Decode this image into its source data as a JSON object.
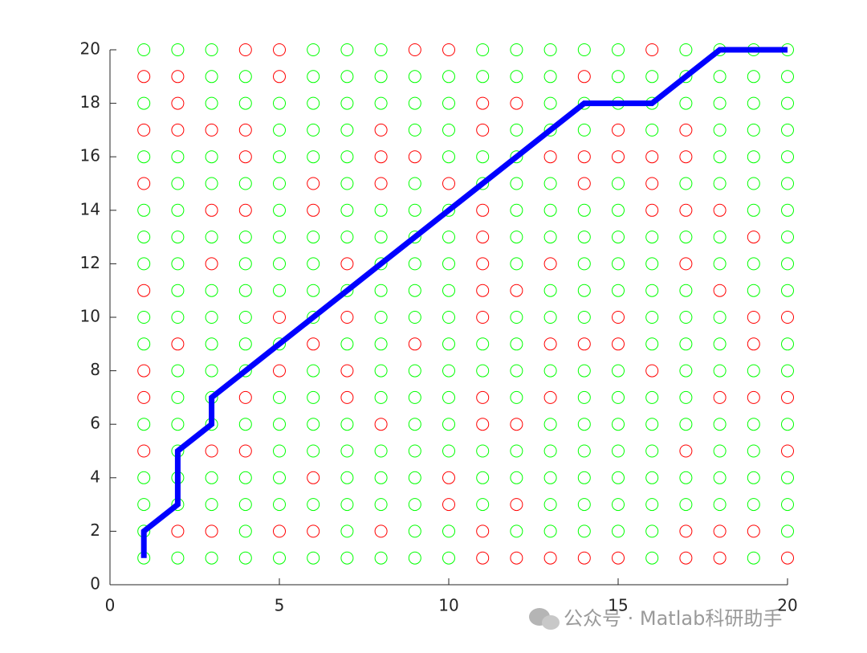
{
  "chart_data": {
    "type": "scatter",
    "xlim": [
      0,
      20
    ],
    "xticks": [
      0,
      5,
      10,
      15,
      20
    ],
    "ylim": [
      0,
      20
    ],
    "yticks": [
      0,
      2,
      4,
      6,
      8,
      10,
      12,
      14,
      16,
      18,
      20
    ],
    "series": [
      {
        "color": "#00ff00",
        "rows": [
          {
            "y": 20,
            "x": [
              1,
              2,
              3,
              6,
              7,
              8,
              11,
              12,
              13,
              14,
              15,
              17,
              18,
              19,
              20
            ]
          },
          {
            "y": 19,
            "x": [
              3,
              4,
              6,
              7,
              8,
              9,
              10,
              11,
              12,
              13,
              15,
              16,
              17,
              18,
              19,
              20
            ]
          },
          {
            "y": 18,
            "x": [
              1,
              3,
              4,
              5,
              6,
              7,
              8,
              9,
              10,
              13,
              14,
              15,
              16,
              17,
              18,
              19,
              20
            ]
          },
          {
            "y": 17,
            "x": [
              5,
              6,
              7,
              9,
              10,
              12,
              13,
              14,
              16,
              18,
              19,
              20
            ]
          },
          {
            "y": 16,
            "x": [
              1,
              2,
              3,
              5,
              6,
              7,
              10,
              11,
              12,
              18,
              19,
              20
            ]
          },
          {
            "y": 15,
            "x": [
              2,
              3,
              4,
              5,
              7,
              9,
              11,
              12,
              13,
              15,
              17,
              18,
              19,
              20
            ]
          },
          {
            "y": 14,
            "x": [
              1,
              2,
              5,
              7,
              8,
              9,
              10,
              12,
              13,
              14,
              15,
              19,
              20
            ]
          },
          {
            "y": 13,
            "x": [
              1,
              2,
              3,
              4,
              5,
              6,
              7,
              8,
              9,
              10,
              12,
              13,
              14,
              15,
              16,
              17,
              18,
              20
            ]
          },
          {
            "y": 12,
            "x": [
              1,
              2,
              4,
              5,
              6,
              8,
              9,
              10,
              12,
              14,
              15,
              16,
              18,
              19,
              20
            ]
          },
          {
            "y": 11,
            "x": [
              2,
              3,
              4,
              5,
              6,
              7,
              8,
              9,
              10,
              13,
              14,
              15,
              16,
              17,
              19,
              20
            ]
          },
          {
            "y": 10,
            "x": [
              1,
              2,
              3,
              4,
              6,
              8,
              9,
              10,
              12,
              13,
              14,
              16,
              17,
              18
            ]
          },
          {
            "y": 9,
            "x": [
              1,
              3,
              4,
              5,
              7,
              8,
              10,
              11,
              12,
              16,
              17,
              18,
              20
            ]
          },
          {
            "y": 8,
            "x": [
              2,
              3,
              4,
              6,
              8,
              9,
              10,
              11,
              12,
              13,
              14,
              15,
              17,
              18,
              19,
              20
            ]
          },
          {
            "y": 7,
            "x": [
              2,
              3,
              5,
              6,
              8,
              9,
              10,
              12,
              14,
              15,
              16,
              17
            ]
          },
          {
            "y": 6,
            "x": [
              1,
              2,
              3,
              4,
              5,
              6,
              7,
              9,
              10,
              13,
              14,
              15,
              16,
              17,
              18,
              19,
              20
            ]
          },
          {
            "y": 5,
            "x": [
              2,
              5,
              6,
              7,
              8,
              9,
              10,
              11,
              12,
              13,
              14,
              15,
              16,
              18,
              19
            ]
          },
          {
            "y": 4,
            "x": [
              1,
              2,
              3,
              4,
              5,
              7,
              8,
              9,
              11,
              12,
              13,
              14,
              15,
              16,
              17,
              18,
              19,
              20
            ]
          },
          {
            "y": 3,
            "x": [
              1,
              2,
              3,
              4,
              5,
              6,
              7,
              8,
              9,
              11,
              13,
              14,
              15,
              16,
              17,
              18,
              19,
              20
            ]
          },
          {
            "y": 2,
            "x": [
              1,
              4,
              7,
              9,
              10,
              12,
              13,
              14,
              15,
              16,
              20
            ]
          },
          {
            "y": 1,
            "x": [
              1,
              2,
              3,
              4,
              5,
              6,
              7,
              8,
              9,
              10,
              16,
              19
            ]
          }
        ]
      },
      {
        "color": "#ff0000",
        "rows": [
          {
            "y": 20,
            "x": [
              4,
              5,
              9,
              10,
              16
            ]
          },
          {
            "y": 19,
            "x": [
              1,
              2,
              5,
              14
            ]
          },
          {
            "y": 18,
            "x": [
              2,
              11,
              12
            ]
          },
          {
            "y": 17,
            "x": [
              1,
              2,
              3,
              4,
              8,
              11,
              15,
              17
            ]
          },
          {
            "y": 16,
            "x": [
              4,
              8,
              9,
              13,
              14,
              15,
              16,
              17
            ]
          },
          {
            "y": 15,
            "x": [
              1,
              6,
              8,
              10,
              14,
              16
            ]
          },
          {
            "y": 14,
            "x": [
              3,
              4,
              6,
              11,
              16,
              17,
              18
            ]
          },
          {
            "y": 13,
            "x": [
              11,
              19
            ]
          },
          {
            "y": 12,
            "x": [
              3,
              7,
              11,
              13,
              17
            ]
          },
          {
            "y": 11,
            "x": [
              1,
              11,
              12,
              18
            ]
          },
          {
            "y": 10,
            "x": [
              5,
              7,
              11,
              15,
              19,
              20
            ]
          },
          {
            "y": 9,
            "x": [
              2,
              6,
              9,
              13,
              14,
              15,
              19
            ]
          },
          {
            "y": 8,
            "x": [
              1,
              5,
              7,
              16
            ]
          },
          {
            "y": 7,
            "x": [
              1,
              4,
              7,
              11,
              13,
              18,
              19,
              20
            ]
          },
          {
            "y": 6,
            "x": [
              8,
              11,
              12
            ]
          },
          {
            "y": 5,
            "x": [
              1,
              3,
              4,
              17,
              20
            ]
          },
          {
            "y": 4,
            "x": [
              6,
              10
            ]
          },
          {
            "y": 3,
            "x": [
              10,
              12
            ]
          },
          {
            "y": 2,
            "x": [
              2,
              3,
              5,
              6,
              8,
              11,
              17,
              18,
              19
            ]
          },
          {
            "y": 1,
            "x": [
              11,
              12,
              13,
              14,
              15,
              17,
              18,
              20
            ]
          }
        ]
      },
      {
        "type": "line",
        "color": "#0000ff",
        "x": [
          1,
          1,
          2,
          2,
          3,
          3,
          4,
          5,
          6,
          7,
          8,
          9,
          10,
          11,
          12,
          13,
          14,
          15,
          16,
          17,
          18,
          19,
          20
        ],
        "y": [
          1,
          2,
          3,
          5,
          6,
          7,
          8,
          9,
          10,
          11,
          12,
          13,
          14,
          15,
          16,
          17,
          18,
          18,
          18,
          19,
          20,
          20,
          20
        ]
      }
    ],
    "watermark": "公众号 · Matlab科研助手"
  }
}
